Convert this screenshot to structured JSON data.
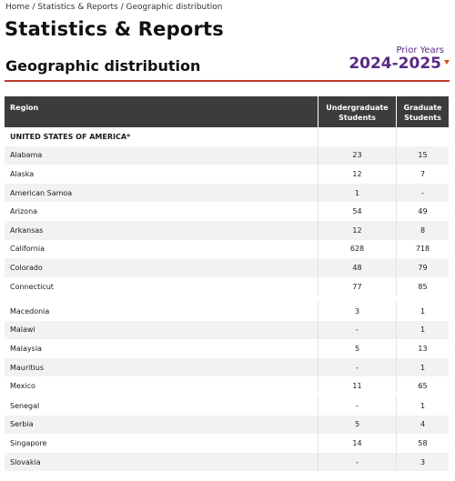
{
  "breadcrumb": {
    "home": "Home",
    "sep": " / ",
    "section": "Statistics & Reports",
    "current": "Geographic distribution"
  },
  "page_title": "Statistics & Reports",
  "section_title": "Geographic distribution",
  "year_selector": {
    "label": "Prior Years",
    "value": "2024-2025"
  },
  "colors": {
    "accent": "#5b2a86",
    "rule": "#c0392b",
    "header_bg": "#3c3c3c",
    "caret": "#d35400"
  },
  "table": {
    "headers": {
      "region": "Region",
      "undergrad": "Undergraduate Students",
      "grad": "Graduate Students"
    },
    "block1": [
      {
        "region": "UNITED STATES OF AMERICA*",
        "ug": "",
        "gr": ""
      },
      {
        "region": "Alabama",
        "ug": "23",
        "gr": "15"
      },
      {
        "region": "Alaska",
        "ug": "12",
        "gr": "7"
      },
      {
        "region": "American Samoa",
        "ug": "1",
        "gr": "-"
      },
      {
        "region": "Arizona",
        "ug": "54",
        "gr": "49"
      },
      {
        "region": "Arkansas",
        "ug": "12",
        "gr": "8"
      },
      {
        "region": "California",
        "ug": "628",
        "gr": "718"
      },
      {
        "region": "Colorado",
        "ug": "48",
        "gr": "79"
      },
      {
        "region": "Connecticut",
        "ug": "77",
        "gr": "85"
      }
    ],
    "block2": [
      {
        "region": "Macedonia",
        "ug": "3",
        "gr": "1"
      },
      {
        "region": "Malawi",
        "ug": "-",
        "gr": "1"
      },
      {
        "region": "Malaysia",
        "ug": "5",
        "gr": "13"
      },
      {
        "region": "Mauritius",
        "ug": "-",
        "gr": "1"
      },
      {
        "region": "Mexico",
        "ug": "11",
        "gr": "65"
      }
    ],
    "block3": [
      {
        "region": "Senegal",
        "ug": "-",
        "gr": "1"
      },
      {
        "region": "Serbia",
        "ug": "5",
        "gr": "4"
      },
      {
        "region": "Singapore",
        "ug": "14",
        "gr": "58"
      },
      {
        "region": "Slovakia",
        "ug": "-",
        "gr": "3"
      }
    ]
  }
}
